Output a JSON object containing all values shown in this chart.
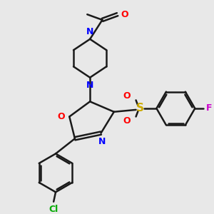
{
  "bg_color": "#e8e8e8",
  "bond_color": "#1a1a1a",
  "atom_colors": {
    "N": "#0000ff",
    "O": "#ff0000",
    "S": "#ccaa00",
    "Cl": "#00aa00",
    "F": "#cc00cc"
  },
  "figsize": [
    3.0,
    3.0
  ],
  "dpi": 100
}
